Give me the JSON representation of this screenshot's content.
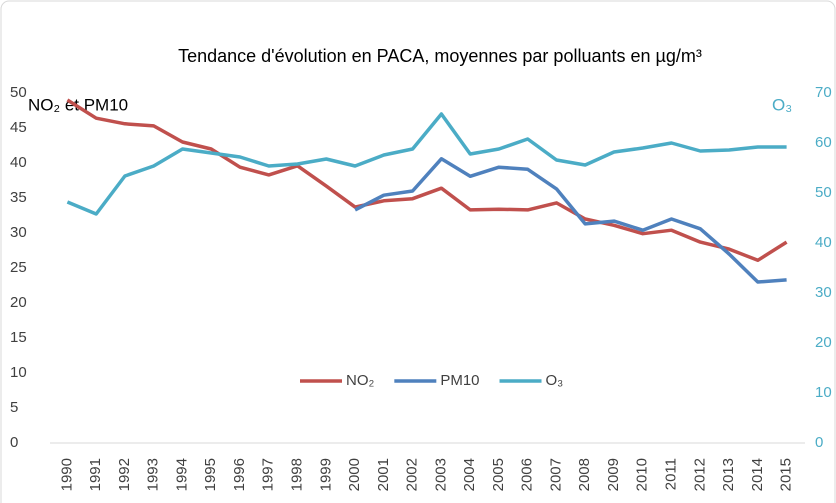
{
  "chart_data": {
    "type": "line",
    "title": "Tendance d'évolution en PACA, moyennes par polluants en µg/m³",
    "ylabel": "NO₂ et PM10",
    "y2label": "O₃",
    "categories": [
      "1990",
      "1991",
      "1992",
      "1993",
      "1994",
      "1995",
      "1996",
      "1997",
      "1998",
      "1999",
      "2000",
      "2001",
      "2002",
      "2003",
      "2004",
      "2005",
      "2006",
      "2007",
      "2008",
      "2009",
      "2010",
      "2011",
      "2012",
      "2013",
      "2014",
      "2015"
    ],
    "series": [
      {
        "name": "NO₂",
        "color": "#c0504d",
        "values": [
          49,
          46.4,
          45.6,
          45.3,
          43,
          42,
          39.4,
          38.3,
          39.6,
          36.7,
          33.7,
          34.6,
          34.9,
          36.4,
          33.3,
          33.4,
          33.3,
          34.3,
          32,
          31.1,
          29.9,
          30.4,
          28.7,
          27.7,
          26.1,
          28.7
        ]
      },
      {
        "name": "PM10",
        "color": "#4f81bd",
        "values": [
          null,
          null,
          null,
          null,
          null,
          null,
          null,
          null,
          null,
          null,
          33.3,
          35.4,
          36,
          40.6,
          38.1,
          39.4,
          39.1,
          36.3,
          31.3,
          31.7,
          30.4,
          32,
          30.6,
          27,
          23,
          23.3
        ]
      },
      {
        "name": "O₃",
        "color": "#4bacc6",
        "axis": "y2",
        "values": [
          48.2,
          45.8,
          53.4,
          55.4,
          58.8,
          58,
          57.2,
          55.4,
          55.8,
          56.8,
          55.4,
          57.6,
          58.8,
          65.8,
          57.8,
          58.8,
          60.8,
          56.6,
          55.6,
          58.2,
          59,
          60,
          58.4,
          58.6,
          59.2,
          59.2
        ]
      }
    ],
    "ylim": [
      0,
      50
    ],
    "yticks": [
      0,
      5,
      10,
      15,
      20,
      25,
      30,
      35,
      40,
      45,
      50
    ],
    "y2lim": [
      0,
      70
    ],
    "y2ticks": [
      0,
      10,
      20,
      30,
      40,
      50,
      60,
      70
    ],
    "legend": "inside"
  }
}
